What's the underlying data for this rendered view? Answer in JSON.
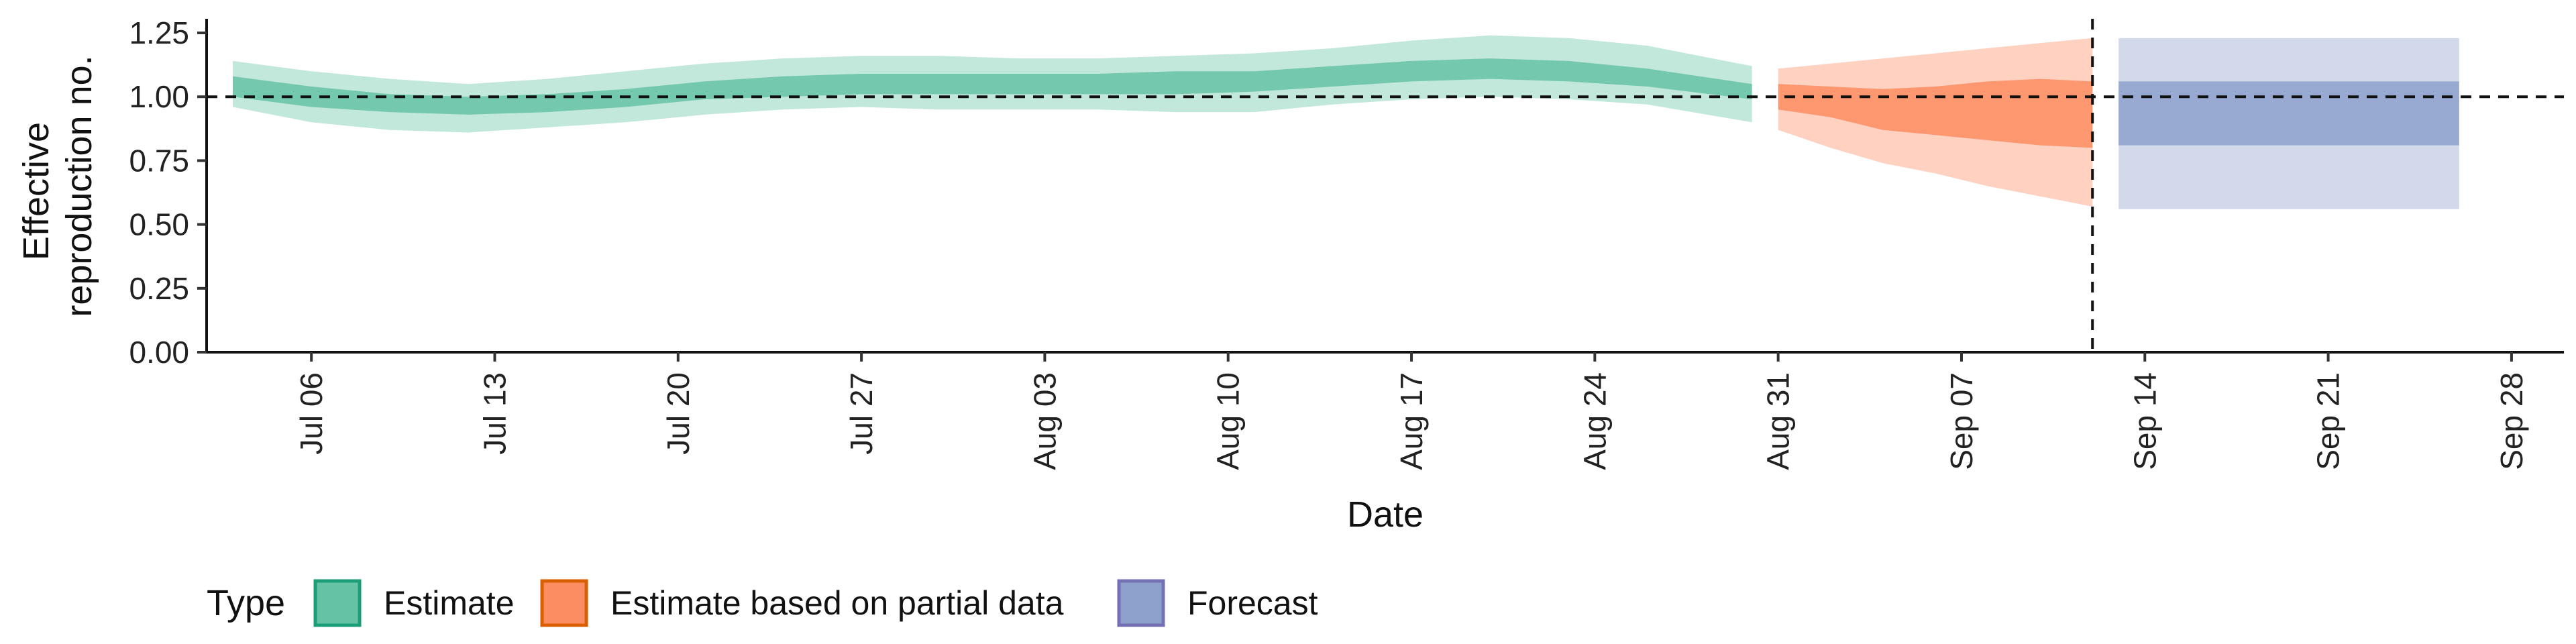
{
  "chart_data": {
    "type": "area",
    "xlabel": "Date",
    "ylabel_lines": [
      "Effective",
      "reproduction no."
    ],
    "ylim": [
      0,
      1.3
    ],
    "xlim": [
      "2025-07-02",
      "2025-09-30"
    ],
    "yticks": [
      0.0,
      0.25,
      0.5,
      0.75,
      1.0,
      1.25
    ],
    "ytick_labels": [
      "0.00",
      "0.25",
      "0.50",
      "0.75",
      "1.00",
      "1.25"
    ],
    "xticks": [
      "2025-07-06",
      "2025-07-13",
      "2025-07-20",
      "2025-07-27",
      "2025-08-03",
      "2025-08-10",
      "2025-08-17",
      "2025-08-24",
      "2025-08-31",
      "2025-09-07",
      "2025-09-14",
      "2025-09-21",
      "2025-09-28"
    ],
    "xtick_labels": [
      "Jul 06",
      "Jul 13",
      "Jul 20",
      "Jul 27",
      "Aug 03",
      "Aug 10",
      "Aug 17",
      "Aug 24",
      "Aug 31",
      "Sep 07",
      "Sep 14",
      "Sep 21",
      "Sep 28"
    ],
    "reference_line_y": 1.0,
    "forecast_start": "2025-09-12",
    "legend": {
      "title": "Type",
      "placement": "bottom",
      "entries": [
        "Estimate",
        "Estimate based on partial data",
        "Forecast"
      ]
    },
    "series": [
      {
        "name": "Estimate",
        "fill": "#66c2a5",
        "stroke": "#1b9e77",
        "x": [
          "2025-07-03",
          "2025-07-06",
          "2025-07-09",
          "2025-07-12",
          "2025-07-15",
          "2025-07-18",
          "2025-07-21",
          "2025-07-24",
          "2025-07-27",
          "2025-07-30",
          "2025-08-02",
          "2025-08-05",
          "2025-08-08",
          "2025-08-11",
          "2025-08-14",
          "2025-08-17",
          "2025-08-20",
          "2025-08-23",
          "2025-08-26",
          "2025-08-30"
        ],
        "lower90": [
          0.96,
          0.9,
          0.87,
          0.86,
          0.88,
          0.9,
          0.93,
          0.95,
          0.96,
          0.95,
          0.95,
          0.95,
          0.94,
          0.94,
          0.97,
          0.99,
          1.0,
          0.99,
          0.97,
          0.9
        ],
        "upper90": [
          1.14,
          1.1,
          1.07,
          1.05,
          1.07,
          1.1,
          1.13,
          1.15,
          1.16,
          1.16,
          1.15,
          1.15,
          1.16,
          1.17,
          1.19,
          1.22,
          1.24,
          1.23,
          1.2,
          1.12
        ],
        "lower50": [
          1.0,
          0.96,
          0.94,
          0.93,
          0.94,
          0.96,
          0.99,
          1.0,
          1.01,
          1.01,
          1.01,
          1.01,
          1.01,
          1.02,
          1.04,
          1.06,
          1.07,
          1.06,
          1.04,
          0.99
        ],
        "upper50": [
          1.08,
          1.04,
          1.01,
          1.0,
          1.01,
          1.03,
          1.06,
          1.08,
          1.09,
          1.09,
          1.09,
          1.09,
          1.1,
          1.1,
          1.12,
          1.14,
          1.15,
          1.14,
          1.11,
          1.05
        ]
      },
      {
        "name": "Estimate based on partial data",
        "fill": "#fc8d62",
        "stroke": "#d95f02",
        "x": [
          "2025-08-31",
          "2025-09-02",
          "2025-09-04",
          "2025-09-06",
          "2025-09-08",
          "2025-09-10",
          "2025-09-12"
        ],
        "lower90": [
          0.87,
          0.8,
          0.74,
          0.7,
          0.65,
          0.61,
          0.57
        ],
        "upper90": [
          1.11,
          1.13,
          1.15,
          1.17,
          1.19,
          1.21,
          1.23
        ],
        "lower50": [
          0.95,
          0.92,
          0.87,
          0.85,
          0.83,
          0.81,
          0.8
        ],
        "upper50": [
          1.05,
          1.04,
          1.03,
          1.04,
          1.06,
          1.07,
          1.06
        ]
      },
      {
        "name": "Forecast",
        "fill": "#8da0cb",
        "stroke": "#7570b3",
        "x": [
          "2025-09-13",
          "2025-09-26"
        ],
        "lower90": [
          0.56,
          0.56
        ],
        "upper90": [
          1.23,
          1.23
        ],
        "lower50": [
          0.81,
          0.81
        ],
        "upper50": [
          1.06,
          1.06
        ]
      }
    ]
  }
}
